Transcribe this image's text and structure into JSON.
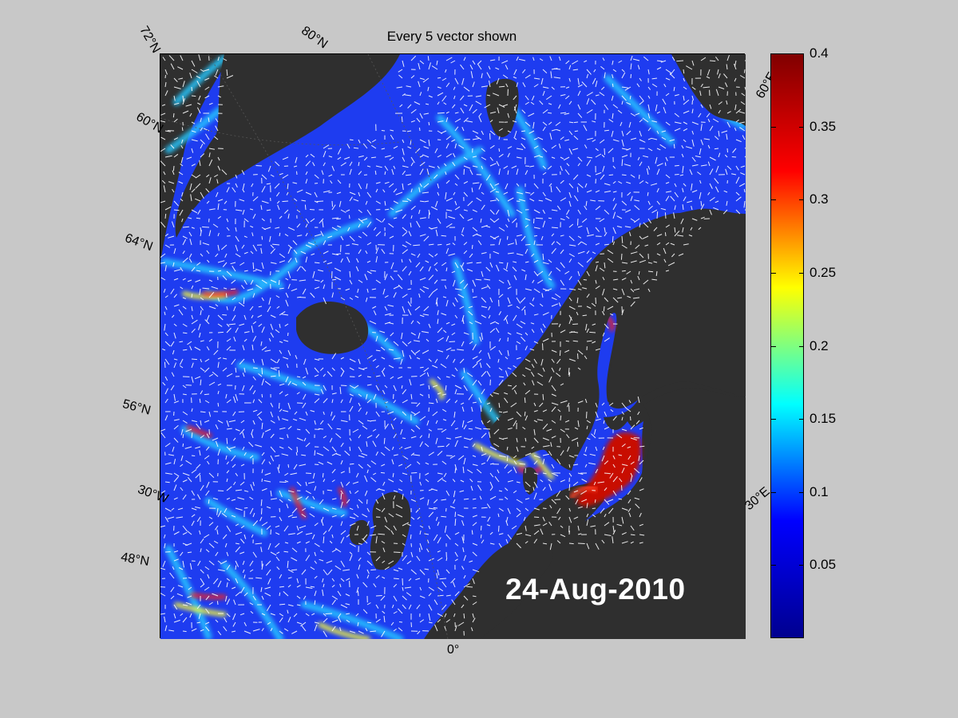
{
  "title": "Every 5 vector shown",
  "date_stamp": "24-Aug-2010",
  "lat_labels": [
    "72°N",
    "80°N",
    "60°N",
    "64°N",
    "56°N",
    "48°N"
  ],
  "lon_labels": [
    "60°E",
    "30°E",
    "30°W",
    "0°"
  ],
  "colorbar": {
    "ticks": [
      "0.4",
      "0.35",
      "0.3",
      "0.25",
      "0.2",
      "0.15",
      "0.1",
      "0.05"
    ],
    "min": 0,
    "max": 0.4,
    "colors": [
      "#00008f",
      "#0000ff",
      "#00ffff",
      "#ffff00",
      "#ff0000",
      "#800000"
    ]
  },
  "colors": {
    "background": "#c8c8c8",
    "land": "#2f2f2f",
    "ocean_base": "#1e3cf0",
    "vectors": "#ffffff"
  }
}
